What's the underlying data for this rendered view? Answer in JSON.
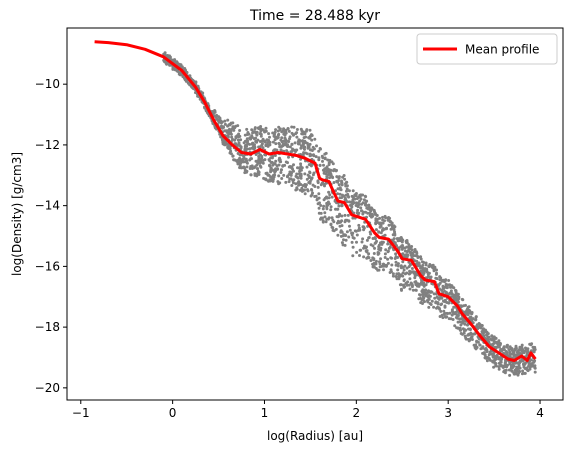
{
  "chart_data": {
    "type": "scatter",
    "title": "Time = 28.488 kyr",
    "xlabel": "log(Radius) [au]",
    "ylabel": "log(Density) [g/cm3]",
    "xlim": [
      -1.15,
      4.25
    ],
    "ylim": [
      -20.4,
      -8.15
    ],
    "xticks": [
      -1,
      0,
      1,
      2,
      3,
      4
    ],
    "xtick_labels": [
      "−1",
      "0",
      "1",
      "2",
      "3",
      "4"
    ],
    "yticks": [
      -20,
      -18,
      -16,
      -14,
      -12,
      -10
    ],
    "ytick_labels": [
      "−20",
      "−18",
      "−16",
      "−14",
      "−12",
      "−10"
    ],
    "grid": false,
    "legend": {
      "position": "top-right",
      "entries": [
        {
          "label": "Mean profile",
          "color": "#ff0000"
        }
      ]
    },
    "scatter_color": "#808080",
    "series": [
      {
        "name": "Mean profile",
        "color": "#ff0000",
        "x": [
          -0.85,
          -0.7,
          -0.5,
          -0.3,
          -0.1,
          0.1,
          0.25,
          0.35,
          0.45,
          0.55,
          0.65,
          0.75,
          0.85,
          0.95,
          1.05,
          1.15,
          1.25,
          1.35,
          1.45,
          1.55,
          1.6,
          1.63,
          1.7,
          1.76,
          1.8,
          1.87,
          1.95,
          2.0,
          2.1,
          2.2,
          2.25,
          2.35,
          2.45,
          2.5,
          2.6,
          2.7,
          2.75,
          2.85,
          2.9,
          3.0,
          3.1,
          3.15,
          3.25,
          3.35,
          3.45,
          3.55,
          3.65,
          3.72,
          3.8,
          3.86,
          3.9,
          3.95
        ],
        "y": [
          -8.6,
          -8.63,
          -8.7,
          -8.85,
          -9.1,
          -9.55,
          -10.1,
          -10.6,
          -11.2,
          -11.7,
          -12.0,
          -12.25,
          -12.3,
          -12.15,
          -12.3,
          -12.25,
          -12.3,
          -12.35,
          -12.45,
          -12.6,
          -13.1,
          -13.15,
          -13.2,
          -13.6,
          -13.85,
          -13.9,
          -14.3,
          -14.35,
          -14.45,
          -14.9,
          -15.05,
          -15.1,
          -15.5,
          -15.75,
          -15.8,
          -16.3,
          -16.45,
          -16.5,
          -16.9,
          -17.0,
          -17.3,
          -17.55,
          -17.9,
          -18.3,
          -18.65,
          -18.85,
          -19.05,
          -19.1,
          -18.95,
          -19.1,
          -18.85,
          -19.05
        ]
      }
    ]
  }
}
